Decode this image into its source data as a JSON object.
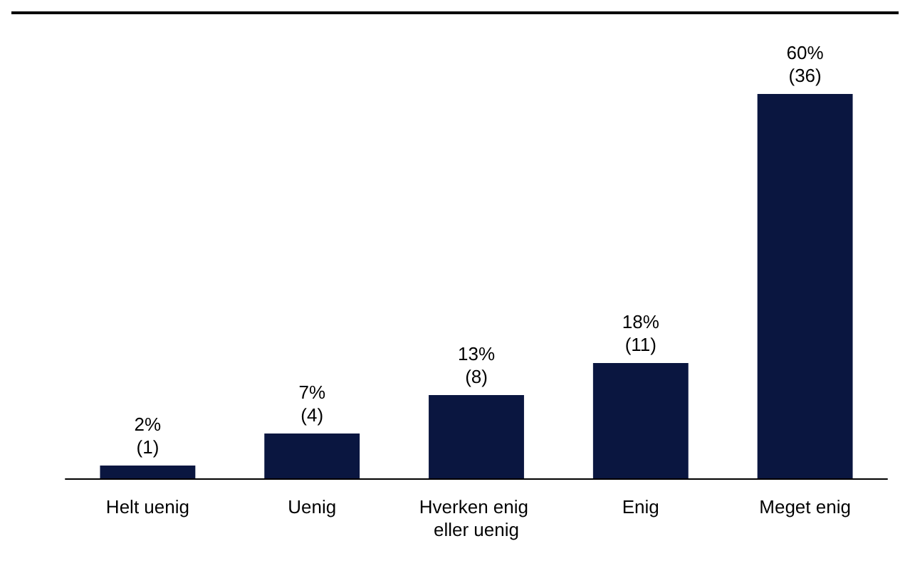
{
  "chart_data": {
    "type": "bar",
    "categories": [
      "Helt uenig",
      "Uenig",
      "Hverken enig eller uenig",
      "Enig",
      "Meget enig"
    ],
    "values": [
      2,
      7,
      13,
      18,
      60
    ],
    "value_labels": [
      "2%\n(1)",
      "7%\n(4)",
      "13%\n(8)",
      "18%\n(11)",
      "60%\n(36)"
    ],
    "color": "#0a1640"
  }
}
